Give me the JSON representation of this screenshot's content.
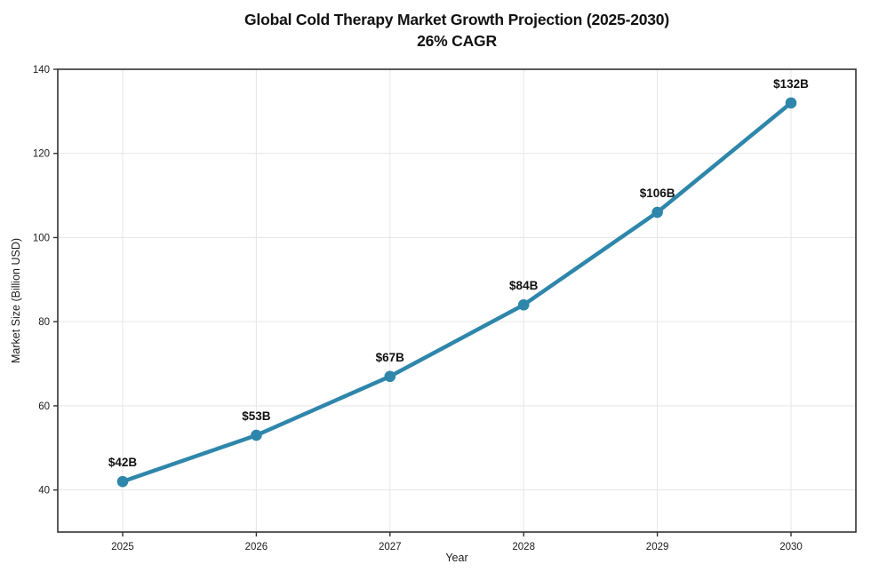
{
  "chart_data": {
    "type": "line",
    "title": "Global Cold Therapy Market Growth Projection (2025-2030)",
    "subtitle": "26% CAGR",
    "xlabel": "Year",
    "ylabel": "Market Size (Billion USD)",
    "categories": [
      "2025",
      "2026",
      "2027",
      "2028",
      "2029",
      "2030"
    ],
    "series": [
      {
        "name": "Market Size (Billion USD)",
        "values": [
          42,
          53,
          67,
          84,
          106,
          132
        ],
        "point_labels": [
          "$42B",
          "$53B",
          "$67B",
          "$84B",
          "$106B",
          "$132B"
        ]
      }
    ],
    "ylim": [
      30,
      140
    ],
    "yticks": [
      40,
      60,
      80,
      100,
      120,
      140
    ],
    "grid": true,
    "legend": "none",
    "colors": {
      "line": "#2E86AB",
      "marker": "#2E86AB",
      "grid": "#E6E6E6",
      "axis": "#333333",
      "tick_text": "#1a1a1a",
      "label_text": "#111111"
    }
  }
}
